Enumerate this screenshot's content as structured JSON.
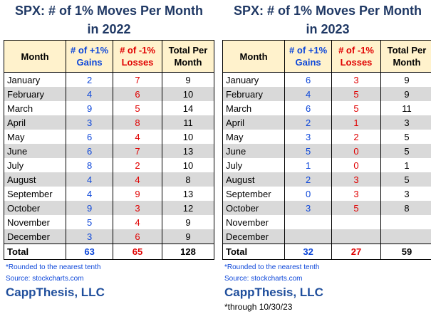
{
  "tables": [
    {
      "title": [
        "SPX:  # of 1% Moves Per Month",
        "in 2022"
      ],
      "headers": [
        "Month",
        "# of +1% Gains",
        "# of -1% Losses",
        "Total Per Month"
      ],
      "rows": [
        [
          "January",
          2,
          7,
          9
        ],
        [
          "February",
          4,
          6,
          10
        ],
        [
          "March",
          9,
          5,
          14
        ],
        [
          "April",
          3,
          8,
          11
        ],
        [
          "May",
          6,
          4,
          10
        ],
        [
          "June",
          6,
          7,
          13
        ],
        [
          "July",
          8,
          2,
          10
        ],
        [
          "August",
          4,
          4,
          8
        ],
        [
          "September",
          4,
          9,
          13
        ],
        [
          "October",
          9,
          3,
          12
        ],
        [
          "November",
          5,
          4,
          9
        ],
        [
          "December",
          3,
          6,
          9
        ]
      ],
      "total": [
        "Total",
        63,
        65,
        128
      ],
      "notes": [
        "*Rounded to the nearest tenth",
        "Source: stockcharts.com"
      ],
      "brand": "CappThesis, LLC"
    },
    {
      "title": [
        "SPX:  # of 1% Moves Per Month",
        "in 2023"
      ],
      "headers": [
        "Month",
        "# of +1% Gains",
        "# of -1% Losses",
        "Total Per Month"
      ],
      "rows": [
        [
          "January",
          6,
          3,
          9
        ],
        [
          "February",
          4,
          5,
          9
        ],
        [
          "March",
          6,
          5,
          11
        ],
        [
          "April",
          2,
          1,
          3
        ],
        [
          "May",
          3,
          2,
          5
        ],
        [
          "June",
          5,
          0,
          5
        ],
        [
          "July",
          1,
          0,
          1
        ],
        [
          "August",
          2,
          3,
          5
        ],
        [
          "September",
          0,
          3,
          3
        ],
        [
          "October",
          3,
          5,
          8
        ],
        [
          "November",
          null,
          null,
          null
        ],
        [
          "December",
          null,
          null,
          null
        ]
      ],
      "total": [
        "Total",
        32,
        27,
        59
      ],
      "notes": [
        "*Rounded to the nearest tenth",
        "Source: stockcharts.com"
      ],
      "brand": "CappThesis, LLC",
      "footnote": "*through 10/30/23"
    }
  ]
}
